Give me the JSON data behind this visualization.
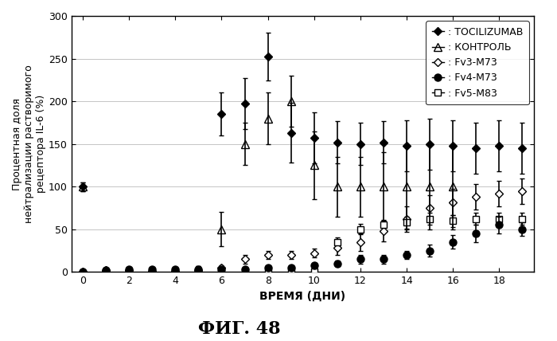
{
  "title": "ФИГ. 48",
  "xlabel": "ВРЕМЯ (ДНИ)",
  "ylabel": "Процентная доля\nнейтрализации растворимого\nрецептора IL-6 (%)",
  "ylim": [
    0,
    300
  ],
  "xlim": [
    -0.5,
    19.5
  ],
  "yticks": [
    0,
    50,
    100,
    150,
    200,
    250,
    300
  ],
  "xticks": [
    0,
    2,
    4,
    6,
    8,
    10,
    12,
    14,
    16,
    18
  ],
  "tocilizumab_x": [
    0,
    1,
    2,
    3,
    4,
    5,
    6,
    7,
    8,
    9,
    10,
    11,
    12,
    13,
    14,
    15,
    16,
    17,
    18,
    19
  ],
  "tocilizumab_y": [
    100,
    2,
    2,
    1,
    1,
    2,
    185,
    197,
    252,
    163,
    157,
    152,
    150,
    152,
    148,
    150,
    148,
    145,
    148,
    145
  ],
  "tocilizumab_yerr": [
    5,
    2,
    1,
    1,
    1,
    5,
    25,
    30,
    28,
    35,
    30,
    25,
    25,
    25,
    30,
    30,
    30,
    30,
    30,
    30
  ],
  "control_x": [
    0,
    1,
    2,
    3,
    4,
    5,
    6,
    7,
    8,
    9,
    10,
    11,
    12,
    13,
    14,
    15,
    16
  ],
  "control_y": [
    100,
    2,
    2,
    1,
    1,
    2,
    50,
    150,
    180,
    200,
    125,
    100,
    100,
    100,
    100,
    100,
    100
  ],
  "control_yerr": [
    5,
    2,
    1,
    1,
    1,
    5,
    20,
    25,
    30,
    30,
    40,
    35,
    35,
    40,
    50,
    50,
    50
  ],
  "fv3m73_x": [
    0,
    1,
    2,
    3,
    4,
    5,
    6,
    7,
    8,
    9,
    10,
    11,
    12,
    13,
    14,
    15,
    16,
    17,
    18,
    19
  ],
  "fv3m73_y": [
    0,
    0,
    0,
    0,
    0,
    0,
    5,
    15,
    20,
    20,
    22,
    28,
    35,
    48,
    62,
    75,
    82,
    88,
    92,
    95
  ],
  "fv3m73_yerr": [
    0,
    0,
    0,
    0,
    0,
    0,
    3,
    5,
    5,
    5,
    5,
    8,
    10,
    12,
    15,
    15,
    15,
    15,
    15,
    15
  ],
  "fv4m73_x": [
    0,
    1,
    2,
    3,
    4,
    5,
    6,
    7,
    8,
    9,
    10,
    11,
    12,
    13,
    14,
    15,
    16,
    17,
    18,
    19
  ],
  "fv4m73_y": [
    0,
    2,
    3,
    3,
    3,
    3,
    3,
    3,
    5,
    5,
    8,
    10,
    15,
    15,
    20,
    25,
    35,
    45,
    55,
    50
  ],
  "fv4m73_yerr": [
    0,
    1,
    1,
    1,
    1,
    1,
    1,
    1,
    2,
    2,
    3,
    3,
    5,
    5,
    5,
    7,
    8,
    10,
    10,
    8
  ],
  "fv5m83_x": [
    4,
    5,
    6,
    7,
    8,
    9,
    10,
    11,
    12,
    13,
    14,
    15,
    16,
    17,
    18,
    19
  ],
  "fv5m83_y": [
    0,
    0,
    0,
    0,
    0,
    0,
    0,
    35,
    50,
    55,
    58,
    62,
    60,
    62,
    62,
    62
  ],
  "fv5m83_yerr": [
    0,
    0,
    0,
    0,
    0,
    0,
    0,
    5,
    6,
    6,
    7,
    7,
    7,
    7,
    7,
    7
  ],
  "color_black": "#000000",
  "background": "#ffffff",
  "legend_fontsize": 9,
  "axis_fontsize": 9,
  "title_fontsize": 16
}
